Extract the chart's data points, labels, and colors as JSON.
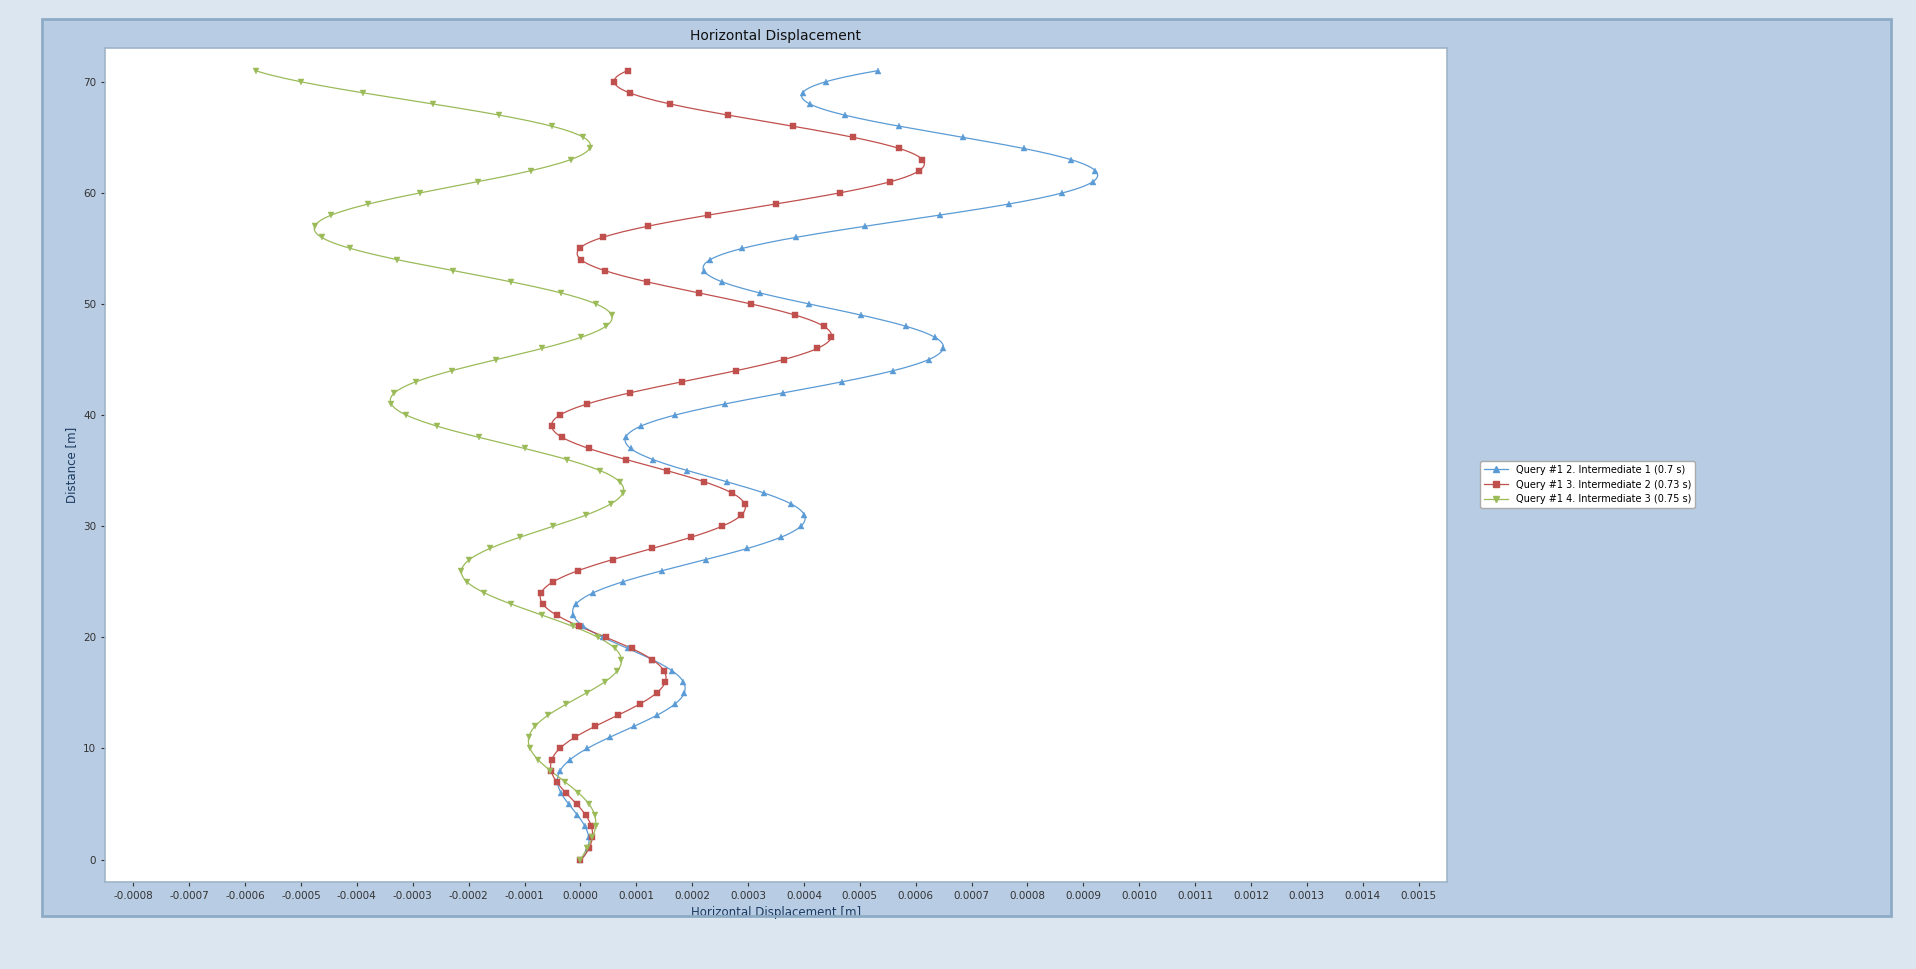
{
  "title": "Horizontal Displacement",
  "xlabel": "Horizontal Displacement [m]",
  "ylabel": "Distance [m]",
  "xlim": [
    -0.00085,
    0.00155
  ],
  "ylim": [
    -2,
    73
  ],
  "xticks": [
    -0.0008,
    -0.0007,
    -0.0006,
    -0.0005,
    -0.0004,
    -0.0003,
    -0.0002,
    -0.0001,
    0.0,
    0.0001,
    0.0002,
    0.0003,
    0.0004,
    0.0005,
    0.0006,
    0.0007,
    0.0008,
    0.0009,
    0.001,
    0.0011,
    0.0012,
    0.0013,
    0.0014,
    0.0015
  ],
  "yticks": [
    0,
    10,
    20,
    30,
    40,
    50,
    60,
    70
  ],
  "legend_labels": [
    "Query #1 2. Intermediate 1 (0.7 s)",
    "Query #1 3. Intermediate 2 (0.73 s)",
    "Query #1 4. Intermediate 3 (0.75 s)"
  ],
  "colors": [
    "#5b9bd5",
    "#c0504d",
    "#9bbb59"
  ],
  "bg_color": "#b8cce4",
  "plot_bg": "#ffffff",
  "outer_bg": "#dce6f1",
  "frame_color": "#a0b4c8",
  "title_fontsize": 10,
  "axis_fontsize": 7.5,
  "legend_fontsize": 7,
  "n_points": 72,
  "y_max": 71.0,
  "y_min": 0.0,
  "period_m": 14.0,
  "amplitude_scale": 0.00038,
  "amplitude_power": 0.7,
  "phases": [
    0.55,
    0.35,
    0.0
  ],
  "drifts": [
    0.00065,
    0.0002,
    -0.00045
  ]
}
